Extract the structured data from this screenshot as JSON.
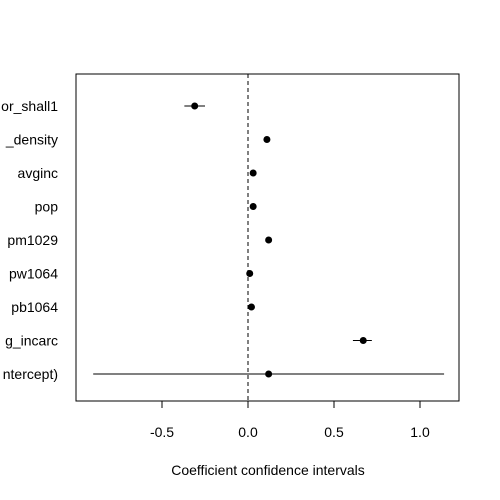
{
  "chart_data": {
    "type": "scatter",
    "title": "",
    "xlabel": "Coefficient confidence intervals",
    "ylabel": "",
    "xlim": [
      -1.0,
      1.22
    ],
    "xticks": [
      -0.5,
      0.0,
      0.5,
      1.0
    ],
    "xtick_labels": [
      "-0.5",
      "0.0",
      "0.5",
      "1.0"
    ],
    "reference_line_x": 0,
    "reference_line_style": "dashed",
    "categories": [
      "or_shall1",
      "_density",
      "avginc",
      "pop",
      "pm1029",
      "pw1064",
      "pb1064",
      "g_incarc",
      "ntercept)"
    ],
    "estimates": [
      -0.31,
      0.11,
      0.03,
      0.03,
      0.12,
      0.01,
      0.02,
      0.67,
      0.12
    ],
    "ci_low": [
      -0.37,
      0.1,
      0.02,
      0.02,
      0.11,
      0.0,
      0.0,
      0.61,
      -0.9
    ],
    "ci_high": [
      -0.25,
      0.12,
      0.04,
      0.04,
      0.13,
      0.02,
      0.04,
      0.72,
      1.14
    ],
    "grid": false,
    "legend": "none",
    "colors": {
      "points": "#000000",
      "lines": "#000000",
      "background": "#ffffff"
    }
  }
}
